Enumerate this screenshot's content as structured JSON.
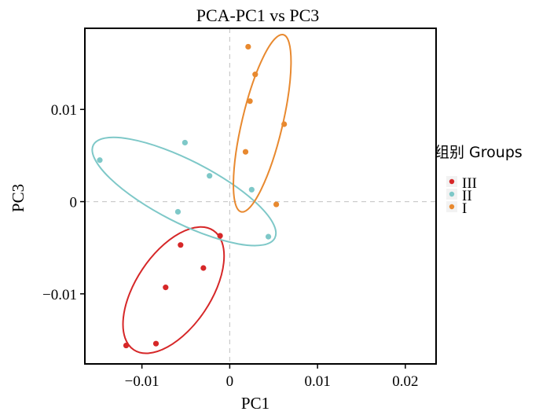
{
  "chart_data": {
    "type": "scatter",
    "title": "PCA-PC1 vs PC3",
    "xlabel": "PC1",
    "ylabel": "PC3",
    "xlim": [
      -0.0165,
      0.0235
    ],
    "ylim": [
      -0.0176,
      0.0188
    ],
    "xticks": [
      -0.01,
      0,
      0.01,
      0.02
    ],
    "xtick_labels": [
      "−0.01",
      "0",
      "0.01",
      "0.02"
    ],
    "yticks": [
      -0.01,
      0,
      0.01
    ],
    "ytick_labels": [
      "−0.01",
      "0",
      "0.01"
    ],
    "zero_lines": true,
    "grid": false,
    "legend": {
      "title": "组别 Groups",
      "placement": "right"
    },
    "series": [
      {
        "name": "III",
        "color": "#d62728",
        "points": [
          [
            -0.0118,
            -0.0156
          ],
          [
            -0.0084,
            -0.0154
          ],
          [
            -0.0073,
            -0.0093
          ],
          [
            -0.0056,
            -0.0047
          ],
          [
            -0.003,
            -0.0072
          ],
          [
            -0.0011,
            -0.0037
          ]
        ],
        "ellipse": {
          "cx": -0.0064,
          "cy": -0.0096,
          "rx": 0.0079,
          "ry": 0.0042,
          "angle_deg": 55
        }
      },
      {
        "name": "II",
        "color": "#7ec8c8",
        "points": [
          [
            -0.0148,
            0.0045
          ],
          [
            -0.0051,
            0.0064
          ],
          [
            -0.0023,
            0.0028
          ],
          [
            -0.0059,
            -0.0011
          ],
          [
            0.0025,
            0.0013
          ],
          [
            0.0044,
            -0.0038
          ]
        ],
        "ellipse": {
          "cx": -0.0052,
          "cy": 0.0011,
          "rx": 0.0115,
          "ry": 0.0034,
          "angle_deg": -26
        }
      },
      {
        "name": "I",
        "color": "#e8892f",
        "points": [
          [
            0.0021,
            0.0168
          ],
          [
            0.0029,
            0.0138
          ],
          [
            0.0023,
            0.0109
          ],
          [
            0.0062,
            0.0084
          ],
          [
            0.0018,
            0.0054
          ],
          [
            0.0053,
            -0.0003
          ]
        ],
        "ellipse": {
          "cx": 0.0037,
          "cy": 0.0085,
          "rx": 0.0099,
          "ry": 0.0023,
          "angle_deg": 76
        }
      }
    ]
  }
}
